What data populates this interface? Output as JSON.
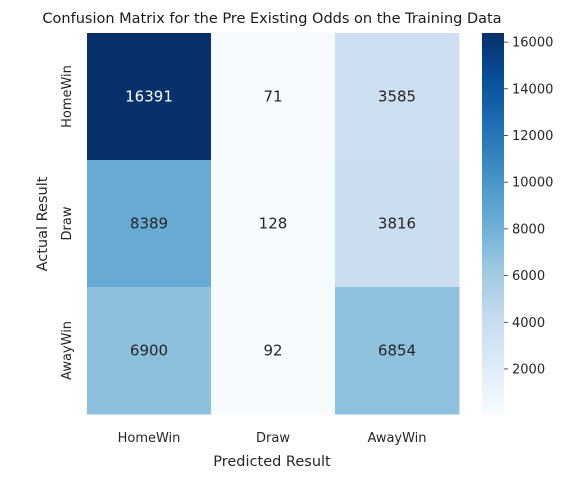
{
  "chart_data": {
    "type": "heatmap",
    "title": "Confusion Matrix for the Pre Existing Odds on the Training Data",
    "xlabel": "Predicted Result",
    "ylabel": "Actual Result",
    "x_categories": [
      "HomeWin",
      "Draw",
      "AwayWin"
    ],
    "y_categories": [
      "HomeWin",
      "Draw",
      "AwayWin"
    ],
    "values": [
      [
        16391,
        71,
        3585
      ],
      [
        8389,
        128,
        3816
      ],
      [
        6900,
        92,
        6854
      ]
    ],
    "colormap": "Blues",
    "colorbar": {
      "ticks": [
        2000,
        4000,
        6000,
        8000,
        10000,
        12000,
        14000,
        16000
      ],
      "min": 71,
      "max": 16391
    }
  }
}
